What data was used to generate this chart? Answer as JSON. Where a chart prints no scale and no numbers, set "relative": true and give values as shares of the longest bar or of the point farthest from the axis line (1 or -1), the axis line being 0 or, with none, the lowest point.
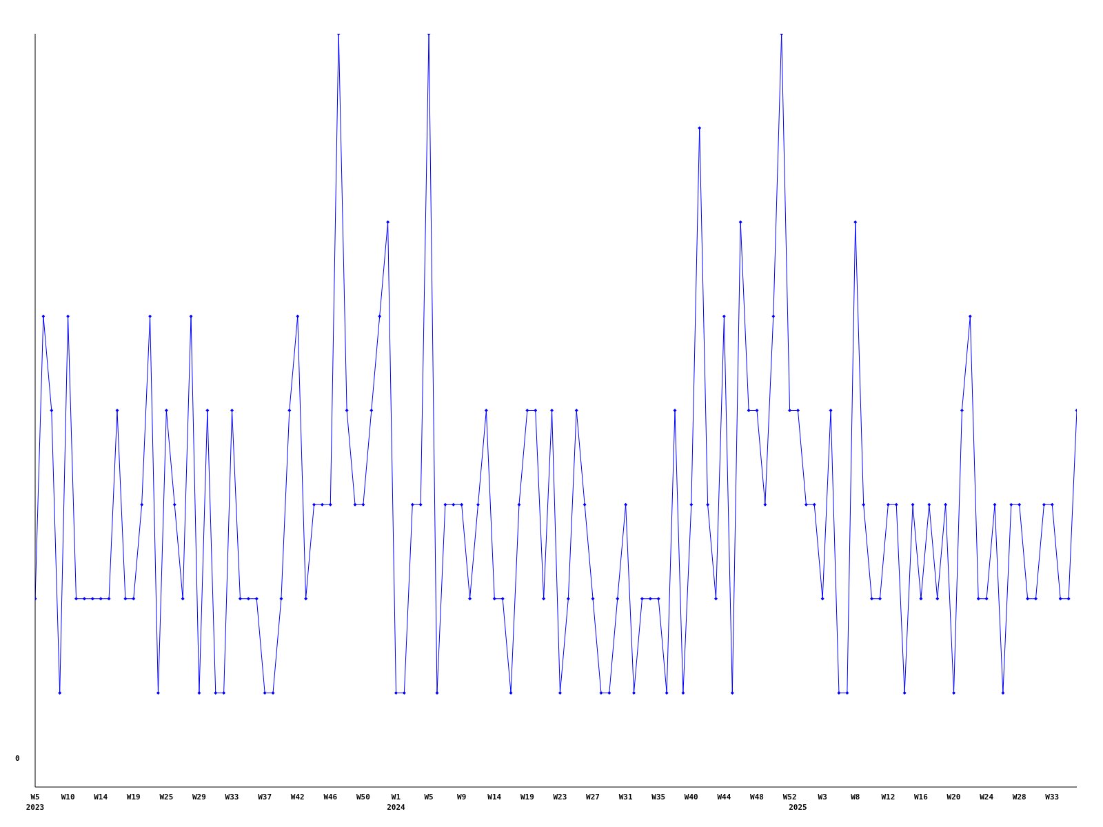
{
  "chart_data": {
    "type": "line",
    "relative": true,
    "color": "#0000ff",
    "marker": "diamond",
    "line_style": "solid",
    "grid": false,
    "legend": false,
    "annotations": [
      "0"
    ],
    "categories": [
      "W5\n2023",
      null,
      null,
      null,
      "W10",
      null,
      null,
      null,
      "W14",
      null,
      null,
      null,
      "W19",
      null,
      null,
      null,
      "W25",
      null,
      null,
      null,
      "W29",
      null,
      null,
      null,
      "W33",
      null,
      null,
      null,
      "W37",
      null,
      null,
      null,
      "W42",
      null,
      null,
      null,
      "W46",
      null,
      null,
      null,
      "W50",
      null,
      null,
      null,
      "W1\n2024",
      null,
      null,
      null,
      "W5",
      null,
      null,
      null,
      "W9",
      null,
      null,
      null,
      "W14",
      null,
      null,
      null,
      "W19",
      null,
      null,
      null,
      "W23",
      null,
      null,
      null,
      "W27",
      null,
      null,
      null,
      "W31",
      null,
      null,
      null,
      "W35",
      null,
      null,
      null,
      "W40",
      null,
      null,
      null,
      "W44",
      null,
      null,
      null,
      "W48",
      null,
      null,
      null,
      "W52",
      "\n2025",
      null,
      null,
      "W3",
      null,
      null,
      null,
      "W8",
      null,
      null,
      null,
      "W12",
      null,
      null,
      null,
      "W16",
      null,
      null,
      null,
      "W20",
      null,
      null,
      null,
      "W24",
      null,
      null,
      null,
      "W28",
      null,
      null,
      null,
      "W33",
      null,
      null,
      null
    ],
    "values": [
      0.25,
      0.625,
      0.5,
      0.125,
      0.625,
      0.25,
      0.25,
      0.25,
      0.25,
      0.25,
      0.5,
      0.25,
      0.25,
      0.375,
      0.625,
      0.125,
      0.5,
      0.375,
      0.25,
      0.625,
      0.125,
      0.5,
      0.125,
      0.125,
      0.5,
      0.25,
      0.25,
      0.25,
      0.125,
      0.125,
      0.25,
      0.5,
      0.625,
      0.25,
      0.375,
      0.375,
      0.375,
      1,
      0.5,
      0.375,
      0.375,
      0.5,
      0.625,
      0.75,
      0.125,
      0.125,
      0.375,
      0.375,
      1,
      0.125,
      0.375,
      0.375,
      0.375,
      0.25,
      0.375,
      0.5,
      0.25,
      0.25,
      0.125,
      0.375,
      0.5,
      0.5,
      0.25,
      0.5,
      0.125,
      0.25,
      0.5,
      0.375,
      0.25,
      0.125,
      0.125,
      0.25,
      0.375,
      0.125,
      0.25,
      0.25,
      0.25,
      0.125,
      0.5,
      0.125,
      0.375,
      0.875,
      0.375,
      0.25,
      0.625,
      0.125,
      0.75,
      0.5,
      0.5,
      0.375,
      0.625,
      1,
      0.5,
      0.5,
      0.375,
      0.375,
      0.25,
      0.5,
      0.125,
      0.125,
      0.75,
      0.375,
      0.25,
      0.25,
      0.375,
      0.375,
      0.125,
      0.375,
      0.25,
      0.375,
      0.25,
      0.375,
      0.125,
      0.5,
      0.625,
      0.25,
      0.25,
      0.375,
      0.125,
      0.375,
      0.375,
      0.25,
      0.25,
      0.375,
      0.375,
      0.25,
      0.25,
      0.5
    ]
  }
}
